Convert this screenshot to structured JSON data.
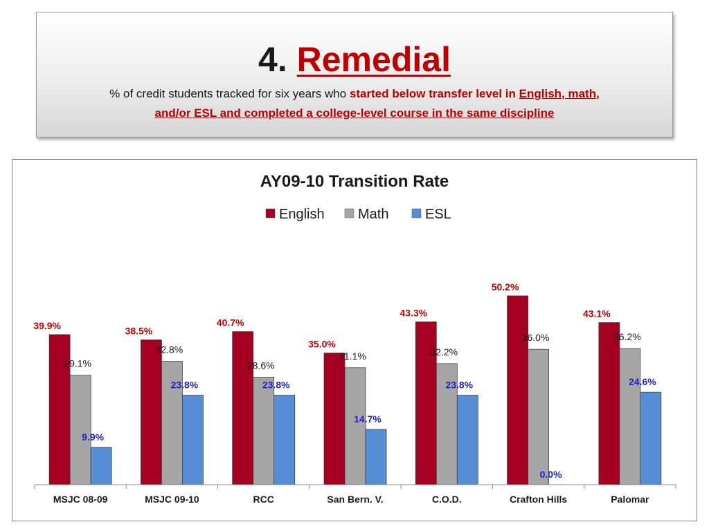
{
  "header": {
    "number": "4.",
    "title_word": "Remedial",
    "subtitle_plain": "% of credit students tracked for six years who ",
    "subtitle_highlight": "started below transfer level in ",
    "subtitle_underlined_1": "English, math,",
    "subtitle_underlined_2": "and/or ESL and completed a college-level course in the same discipline"
  },
  "colors": {
    "accent_red": "#c00000",
    "english": "#a50021",
    "math": "#a6a6a6",
    "esl": "#558ed5",
    "english_label": "#c00000",
    "math_label": "#1a1a1a",
    "esl_label": "#1f1fcc"
  },
  "chart_data": {
    "type": "bar",
    "title": "AY09-10 Transition Rate",
    "categories": [
      "MSJC 08-09",
      "MSJC 09-10",
      "RCC",
      "San Bern. V.",
      "C.O.D.",
      "Crafton Hills",
      "Palomar"
    ],
    "series": [
      {
        "name": "English",
        "values": [
          39.9,
          38.5,
          40.7,
          35.0,
          43.3,
          50.2,
          43.1
        ],
        "labels": [
          "39.9%",
          "38.5%",
          "40.7%",
          "35.0%",
          "43.3%",
          "50.2%",
          "43.1%"
        ],
        "label_bold": true
      },
      {
        "name": "Math",
        "values": [
          29.1,
          32.8,
          28.6,
          31.1,
          32.2,
          36.0,
          36.2
        ],
        "labels": [
          "29.1%",
          "32.8%",
          "28.6%",
          "31.1%",
          "32.2%",
          "36.0%",
          "36.2%"
        ],
        "label_bold": false
      },
      {
        "name": "ESL",
        "values": [
          9.9,
          23.8,
          23.8,
          14.7,
          23.8,
          0.0,
          24.6
        ],
        "labels": [
          "9.9%",
          "23.8%",
          "23.8%",
          "14.7%",
          "23.8%",
          "0.0%",
          "24.6%"
        ],
        "label_bold": true
      }
    ],
    "ylim": [
      0,
      55
    ],
    "grid": false,
    "legend_position": "top"
  }
}
